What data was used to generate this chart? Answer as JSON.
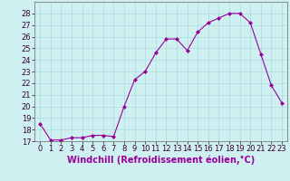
{
  "x": [
    0,
    1,
    2,
    3,
    4,
    5,
    6,
    7,
    8,
    9,
    10,
    11,
    12,
    13,
    14,
    15,
    16,
    17,
    18,
    19,
    20,
    21,
    22,
    23
  ],
  "y": [
    18.5,
    17.1,
    17.1,
    17.3,
    17.3,
    17.5,
    17.5,
    17.4,
    20.0,
    22.3,
    23.0,
    24.6,
    25.8,
    25.8,
    24.8,
    26.4,
    27.2,
    27.6,
    28.0,
    28.0,
    27.2,
    24.5,
    21.8,
    20.3
  ],
  "line_color": "#990099",
  "marker": "D",
  "marker_size": 2,
  "bg_color": "#cff0f0",
  "grid_color": "#aadddd",
  "xlabel": "Windchill (Refroidissement éolien,°C)",
  "xlabel_color": "#990099",
  "ylim": [
    17,
    29
  ],
  "xlim": [
    -0.5,
    23.5
  ],
  "yticks": [
    17,
    18,
    19,
    20,
    21,
    22,
    23,
    24,
    25,
    26,
    27,
    28
  ],
  "xticks": [
    0,
    1,
    2,
    3,
    4,
    5,
    6,
    7,
    8,
    9,
    10,
    11,
    12,
    13,
    14,
    15,
    16,
    17,
    18,
    19,
    20,
    21,
    22,
    23
  ],
  "tick_label_size": 6,
  "xlabel_size": 7,
  "spine_color": "#666666"
}
